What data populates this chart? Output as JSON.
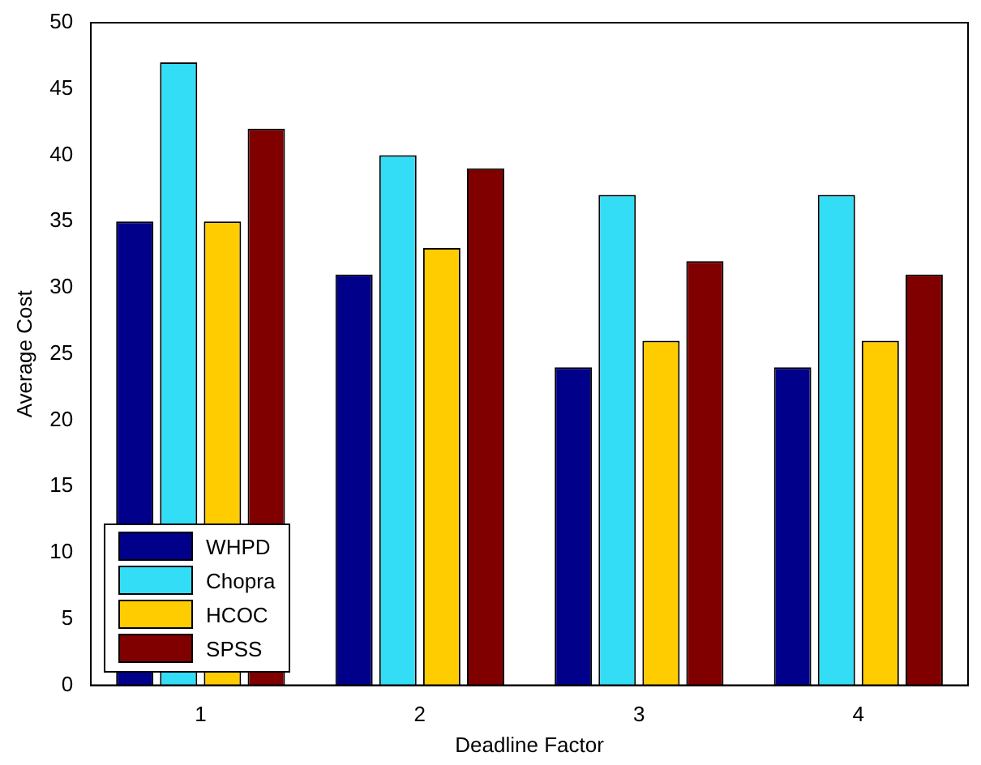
{
  "chart_data": {
    "type": "bar",
    "xlabel": "Deadline Factor",
    "ylabel": "Average Cost",
    "categories": [
      "1",
      "2",
      "3",
      "4"
    ],
    "series": [
      {
        "name": "WHPD",
        "color": "#00008b",
        "values": [
          35,
          31,
          24,
          24
        ]
      },
      {
        "name": "Chopra",
        "color": "#33ddf5",
        "values": [
          47,
          40,
          37,
          37
        ]
      },
      {
        "name": "HCOC",
        "color": "#ffcc00",
        "values": [
          35,
          33,
          26,
          26
        ]
      },
      {
        "name": "SPSS",
        "color": "#800000",
        "values": [
          42,
          39,
          32,
          31
        ]
      }
    ],
    "ylim": [
      0,
      50
    ],
    "yticks": [
      0,
      5,
      10,
      15,
      20,
      25,
      30,
      35,
      40,
      45,
      50
    ],
    "grid": false,
    "legend": "bottom left"
  }
}
